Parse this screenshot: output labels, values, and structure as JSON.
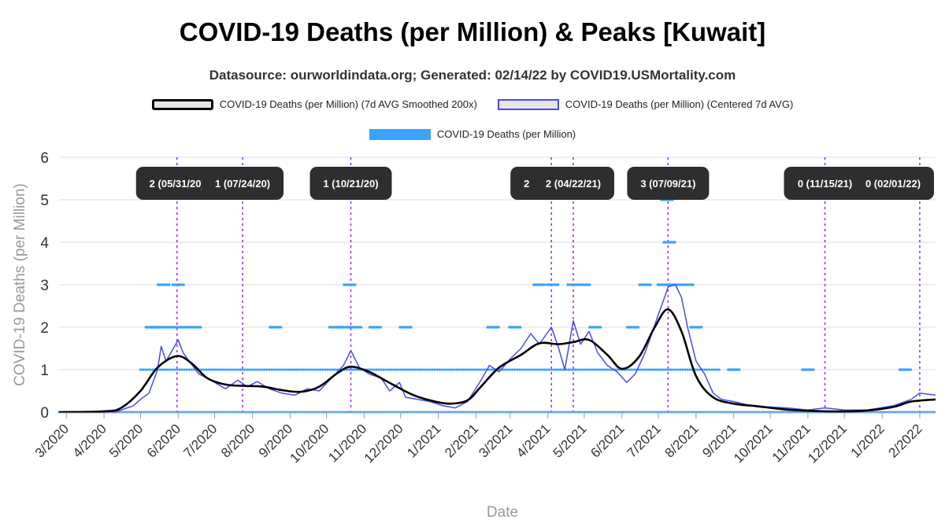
{
  "title": "COVID-19 Deaths (per Million) & Peaks [Kuwait]",
  "subtitle": "Datasource: ourworldindata.org; Generated: 02/14/22 by COVID19.USMortality.com",
  "legend": [
    {
      "label": "COVID-19 Deaths (per Million) (7d AVG Smoothed 200x)",
      "color": "#000000"
    },
    {
      "label": "COVID-19 Deaths (per Million) (Centered 7d AVG)",
      "color": "#4a4af0"
    },
    {
      "label": "COVID-19 Deaths (per Million)",
      "color": "#3aa3ff"
    }
  ],
  "chart_data": {
    "type": "line",
    "xlabel": "Date",
    "ylabel": "COVID-19 Deaths (per Million)",
    "ylim": [
      0,
      6
    ],
    "yticks": [
      0,
      1,
      2,
      3,
      4,
      5,
      6
    ],
    "xlim": [
      "2020-02-24",
      "2022-02-14"
    ],
    "xticks": [
      {
        "date": "2020-03-01",
        "label": "3/2020"
      },
      {
        "date": "2020-04-01",
        "label": "4/2020"
      },
      {
        "date": "2020-05-01",
        "label": "5/2020"
      },
      {
        "date": "2020-06-01",
        "label": "6/2020"
      },
      {
        "date": "2020-07-01",
        "label": "7/2020"
      },
      {
        "date": "2020-08-01",
        "label": "8/2020"
      },
      {
        "date": "2020-09-01",
        "label": "9/2020"
      },
      {
        "date": "2020-10-01",
        "label": "10/2020"
      },
      {
        "date": "2020-11-01",
        "label": "11/2020"
      },
      {
        "date": "2020-12-01",
        "label": "12/2020"
      },
      {
        "date": "2021-01-01",
        "label": "1/2021"
      },
      {
        "date": "2021-02-01",
        "label": "2/2021"
      },
      {
        "date": "2021-03-01",
        "label": "3/2021"
      },
      {
        "date": "2021-04-01",
        "label": "4/2021"
      },
      {
        "date": "2021-05-01",
        "label": "5/2021"
      },
      {
        "date": "2021-06-01",
        "label": "6/2021"
      },
      {
        "date": "2021-07-01",
        "label": "7/2021"
      },
      {
        "date": "2021-08-01",
        "label": "8/2021"
      },
      {
        "date": "2021-09-01",
        "label": "9/2021"
      },
      {
        "date": "2021-10-01",
        "label": "10/2021"
      },
      {
        "date": "2021-11-01",
        "label": "11/2021"
      },
      {
        "date": "2021-12-01",
        "label": "12/2021"
      },
      {
        "date": "2022-01-01",
        "label": "1/2022"
      },
      {
        "date": "2022-02-01",
        "label": "2/2022"
      }
    ],
    "grid": true,
    "legend_position": "top",
    "peaks": [
      {
        "date": "2020-05-31",
        "label": "2 (05/31/20)"
      },
      {
        "date": "2020-07-24",
        "label": "1 (07/24/20)"
      },
      {
        "date": "2020-10-21",
        "label": "1 (10/21/20)"
      },
      {
        "date": "2021-04-04",
        "label": "2 (04/04/21)"
      },
      {
        "date": "2021-04-22",
        "label": "2 (04/22/21)"
      },
      {
        "date": "2021-07-09",
        "label": "3 (07/09/21)"
      },
      {
        "date": "2021-11-15",
        "label": "0 (11/15/21)"
      },
      {
        "date": "2022-02-01",
        "label": "0 (02/01/22)"
      }
    ],
    "series": [
      {
        "name": "COVID-19 Deaths (per Million) (7d AVG Smoothed 200x)",
        "color": "#000000",
        "points": [
          [
            "2020-02-24",
            0
          ],
          [
            "2020-04-01",
            0.02
          ],
          [
            "2020-04-15",
            0.1
          ],
          [
            "2020-05-01",
            0.5
          ],
          [
            "2020-05-15",
            1.05
          ],
          [
            "2020-05-31",
            1.32
          ],
          [
            "2020-06-12",
            1.15
          ],
          [
            "2020-06-25",
            0.8
          ],
          [
            "2020-07-10",
            0.65
          ],
          [
            "2020-07-24",
            0.62
          ],
          [
            "2020-08-10",
            0.6
          ],
          [
            "2020-08-25",
            0.52
          ],
          [
            "2020-09-10",
            0.48
          ],
          [
            "2020-09-25",
            0.6
          ],
          [
            "2020-10-10",
            0.92
          ],
          [
            "2020-10-21",
            1.07
          ],
          [
            "2020-11-05",
            0.95
          ],
          [
            "2020-11-20",
            0.72
          ],
          [
            "2020-12-10",
            0.42
          ],
          [
            "2020-12-25",
            0.28
          ],
          [
            "2021-01-10",
            0.2
          ],
          [
            "2021-01-25",
            0.28
          ],
          [
            "2021-02-05",
            0.6
          ],
          [
            "2021-02-20",
            1.05
          ],
          [
            "2021-03-10",
            1.35
          ],
          [
            "2021-03-25",
            1.62
          ],
          [
            "2021-04-10",
            1.6
          ],
          [
            "2021-04-22",
            1.65
          ],
          [
            "2021-05-05",
            1.7
          ],
          [
            "2021-05-20",
            1.35
          ],
          [
            "2021-06-01",
            1.02
          ],
          [
            "2021-06-15",
            1.3
          ],
          [
            "2021-06-28",
            2.0
          ],
          [
            "2021-07-09",
            2.42
          ],
          [
            "2021-07-20",
            1.9
          ],
          [
            "2021-08-01",
            0.85
          ],
          [
            "2021-08-15",
            0.35
          ],
          [
            "2021-09-01",
            0.2
          ],
          [
            "2021-09-20",
            0.14
          ],
          [
            "2021-10-15",
            0.06
          ],
          [
            "2021-11-15",
            0.02
          ],
          [
            "2021-12-15",
            0.03
          ],
          [
            "2022-01-10",
            0.12
          ],
          [
            "2022-01-25",
            0.25
          ],
          [
            "2022-02-14",
            0.3
          ]
        ]
      },
      {
        "name": "COVID-19 Deaths (per Million) (Centered 7d AVG)",
        "color": "#4a4af0",
        "points": [
          [
            "2020-02-24",
            0
          ],
          [
            "2020-04-10",
            0
          ],
          [
            "2020-04-25",
            0.15
          ],
          [
            "2020-05-01",
            0.3
          ],
          [
            "2020-05-08",
            0.45
          ],
          [
            "2020-05-15",
            1.0
          ],
          [
            "2020-05-18",
            1.55
          ],
          [
            "2020-05-22",
            1.2
          ],
          [
            "2020-05-28",
            1.5
          ],
          [
            "2020-06-01",
            1.7
          ],
          [
            "2020-06-05",
            1.4
          ],
          [
            "2020-06-10",
            1.2
          ],
          [
            "2020-06-18",
            0.9
          ],
          [
            "2020-06-25",
            0.8
          ],
          [
            "2020-07-01",
            0.7
          ],
          [
            "2020-07-10",
            0.55
          ],
          [
            "2020-07-20",
            0.75
          ],
          [
            "2020-07-28",
            0.6
          ],
          [
            "2020-08-05",
            0.72
          ],
          [
            "2020-08-15",
            0.55
          ],
          [
            "2020-08-25",
            0.45
          ],
          [
            "2020-09-05",
            0.4
          ],
          [
            "2020-09-15",
            0.55
          ],
          [
            "2020-09-25",
            0.5
          ],
          [
            "2020-10-05",
            0.8
          ],
          [
            "2020-10-15",
            1.1
          ],
          [
            "2020-10-21",
            1.45
          ],
          [
            "2020-10-28",
            1.05
          ],
          [
            "2020-11-05",
            0.9
          ],
          [
            "2020-11-15",
            0.8
          ],
          [
            "2020-11-22",
            0.5
          ],
          [
            "2020-11-30",
            0.7
          ],
          [
            "2020-12-05",
            0.35
          ],
          [
            "2020-12-15",
            0.3
          ],
          [
            "2020-12-25",
            0.25
          ],
          [
            "2021-01-05",
            0.15
          ],
          [
            "2021-01-15",
            0.1
          ],
          [
            "2021-01-25",
            0.25
          ],
          [
            "2021-02-05",
            0.75
          ],
          [
            "2021-02-12",
            1.1
          ],
          [
            "2021-02-20",
            0.95
          ],
          [
            "2021-03-01",
            1.25
          ],
          [
            "2021-03-10",
            1.5
          ],
          [
            "2021-03-18",
            1.85
          ],
          [
            "2021-03-25",
            1.6
          ],
          [
            "2021-04-04",
            2.0
          ],
          [
            "2021-04-10",
            1.5
          ],
          [
            "2021-04-15",
            1.0
          ],
          [
            "2021-04-22",
            2.15
          ],
          [
            "2021-04-28",
            1.6
          ],
          [
            "2021-05-05",
            1.9
          ],
          [
            "2021-05-12",
            1.4
          ],
          [
            "2021-05-20",
            1.1
          ],
          [
            "2021-05-28",
            0.95
          ],
          [
            "2021-06-05",
            0.7
          ],
          [
            "2021-06-12",
            0.9
          ],
          [
            "2021-06-20",
            1.4
          ],
          [
            "2021-06-25",
            1.8
          ],
          [
            "2021-07-01",
            2.3
          ],
          [
            "2021-07-06",
            2.7
          ],
          [
            "2021-07-09",
            2.95
          ],
          [
            "2021-07-15",
            3.0
          ],
          [
            "2021-07-20",
            2.7
          ],
          [
            "2021-07-25",
            2.0
          ],
          [
            "2021-08-01",
            1.2
          ],
          [
            "2021-08-08",
            0.9
          ],
          [
            "2021-08-15",
            0.45
          ],
          [
            "2021-08-22",
            0.3
          ],
          [
            "2021-09-01",
            0.25
          ],
          [
            "2021-09-15",
            0.15
          ],
          [
            "2021-10-01",
            0.12
          ],
          [
            "2021-10-15",
            0.1
          ],
          [
            "2021-11-01",
            0.05
          ],
          [
            "2021-11-15",
            0.1
          ],
          [
            "2021-12-01",
            0.05
          ],
          [
            "2021-12-20",
            0.05
          ],
          [
            "2022-01-10",
            0.15
          ],
          [
            "2022-01-25",
            0.3
          ],
          [
            "2022-02-01",
            0.45
          ],
          [
            "2022-02-14",
            0.4
          ]
        ]
      },
      {
        "name": "COVID-19 Deaths (per Million)",
        "color": "#3aa3ff",
        "type": "scatter",
        "points": [
          [
            "2020-05-10",
            2
          ],
          [
            "2020-05-15",
            2
          ],
          [
            "2020-05-20",
            3
          ],
          [
            "2020-05-25",
            2
          ],
          [
            "2020-06-01",
            3
          ],
          [
            "2020-06-05",
            2
          ],
          [
            "2020-06-15",
            2
          ],
          [
            "2020-08-20",
            2
          ],
          [
            "2020-10-08",
            2
          ],
          [
            "2020-10-15",
            2
          ],
          [
            "2020-10-20",
            3
          ],
          [
            "2020-10-25",
            2
          ],
          [
            "2020-11-10",
            2
          ],
          [
            "2020-12-05",
            2
          ],
          [
            "2021-02-15",
            2
          ],
          [
            "2021-03-05",
            2
          ],
          [
            "2021-03-25",
            3
          ],
          [
            "2021-04-05",
            3
          ],
          [
            "2021-04-22",
            3
          ],
          [
            "2021-05-01",
            3
          ],
          [
            "2021-05-10",
            2
          ],
          [
            "2021-06-10",
            2
          ],
          [
            "2021-06-20",
            3
          ],
          [
            "2021-07-05",
            3
          ],
          [
            "2021-07-08",
            5
          ],
          [
            "2021-07-10",
            4
          ],
          [
            "2021-07-15",
            3
          ],
          [
            "2021-07-25",
            3
          ],
          [
            "2021-08-01",
            2
          ],
          [
            "2021-09-01",
            1
          ],
          [
            "2021-11-01",
            1
          ],
          [
            "2022-01-20",
            1
          ]
        ]
      }
    ]
  }
}
